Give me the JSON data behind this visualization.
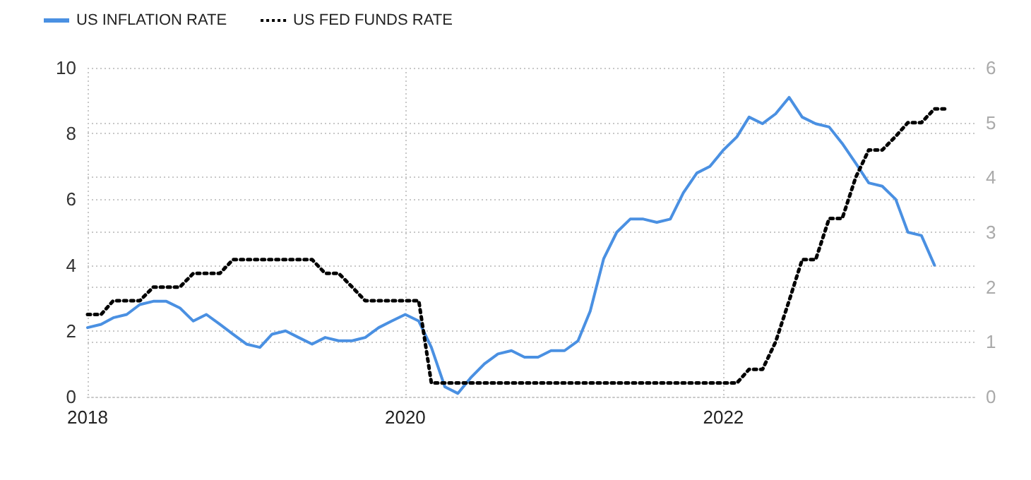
{
  "chart_data": {
    "type": "line",
    "x": [
      "2018-01",
      "2018-02",
      "2018-03",
      "2018-04",
      "2018-05",
      "2018-06",
      "2018-07",
      "2018-08",
      "2018-09",
      "2018-10",
      "2018-11",
      "2018-12",
      "2019-01",
      "2019-02",
      "2019-03",
      "2019-04",
      "2019-05",
      "2019-06",
      "2019-07",
      "2019-08",
      "2019-09",
      "2019-10",
      "2019-11",
      "2019-12",
      "2020-01",
      "2020-02",
      "2020-03",
      "2020-04",
      "2020-05",
      "2020-06",
      "2020-07",
      "2020-08",
      "2020-09",
      "2020-10",
      "2020-11",
      "2020-12",
      "2021-01",
      "2021-02",
      "2021-03",
      "2021-04",
      "2021-05",
      "2021-06",
      "2021-07",
      "2021-08",
      "2021-09",
      "2021-10",
      "2021-11",
      "2021-12",
      "2022-01",
      "2022-02",
      "2022-03",
      "2022-04",
      "2022-05",
      "2022-06",
      "2022-07",
      "2022-08",
      "2022-09",
      "2022-10",
      "2022-11",
      "2022-12",
      "2023-01",
      "2023-02",
      "2023-03",
      "2023-04",
      "2023-05",
      "2023-06"
    ],
    "series": [
      {
        "name": "US INFLATION RATE",
        "color": "#4a90e2",
        "line_style": "solid",
        "values": [
          2.1,
          2.2,
          2.4,
          2.5,
          2.8,
          2.9,
          2.9,
          2.7,
          2.3,
          2.5,
          2.2,
          1.9,
          1.6,
          1.5,
          1.9,
          2.0,
          1.8,
          1.6,
          1.8,
          1.7,
          1.7,
          1.8,
          2.1,
          2.3,
          2.5,
          2.3,
          1.5,
          0.3,
          0.1,
          0.6,
          1.0,
          1.3,
          1.4,
          1.2,
          1.2,
          1.4,
          1.4,
          1.7,
          2.6,
          4.2,
          5.0,
          5.4,
          5.4,
          5.3,
          5.4,
          6.2,
          6.8,
          7.0,
          7.5,
          7.9,
          8.5,
          8.3,
          8.6,
          9.1,
          8.5,
          8.3,
          8.2,
          7.7,
          7.1,
          6.5,
          6.4,
          6.0,
          5.0,
          4.9,
          4.0,
          null
        ]
      },
      {
        "name": "US FED FUNDS RATE",
        "color": "#000000",
        "line_style": "dotted",
        "axis": "y2",
        "values": [
          1.5,
          1.5,
          1.75,
          1.75,
          1.75,
          2.0,
          2.0,
          2.0,
          2.25,
          2.25,
          2.25,
          2.5,
          2.5,
          2.5,
          2.5,
          2.5,
          2.5,
          2.5,
          2.25,
          2.25,
          2.0,
          1.75,
          1.75,
          1.75,
          1.75,
          1.75,
          0.25,
          0.25,
          0.25,
          0.25,
          0.25,
          0.25,
          0.25,
          0.25,
          0.25,
          0.25,
          0.25,
          0.25,
          0.25,
          0.25,
          0.25,
          0.25,
          0.25,
          0.25,
          0.25,
          0.25,
          0.25,
          0.25,
          0.25,
          0.25,
          0.5,
          0.5,
          1.0,
          1.75,
          2.5,
          2.5,
          3.25,
          3.25,
          4.0,
          4.5,
          4.5,
          4.75,
          5.0,
          5.0,
          5.25,
          5.25
        ]
      }
    ],
    "xlim": [
      "2018-01",
      "2023-08"
    ],
    "xticks": [
      "2018",
      "2020",
      "2022"
    ],
    "ylim": [
      0,
      10
    ],
    "yticks": [
      0,
      2,
      4,
      6,
      8,
      10
    ],
    "y2lim": [
      0,
      6
    ],
    "y2ticks": [
      0,
      1,
      2,
      3,
      4,
      5,
      6
    ],
    "grid": true,
    "legend": "top left",
    "marker": "none"
  }
}
